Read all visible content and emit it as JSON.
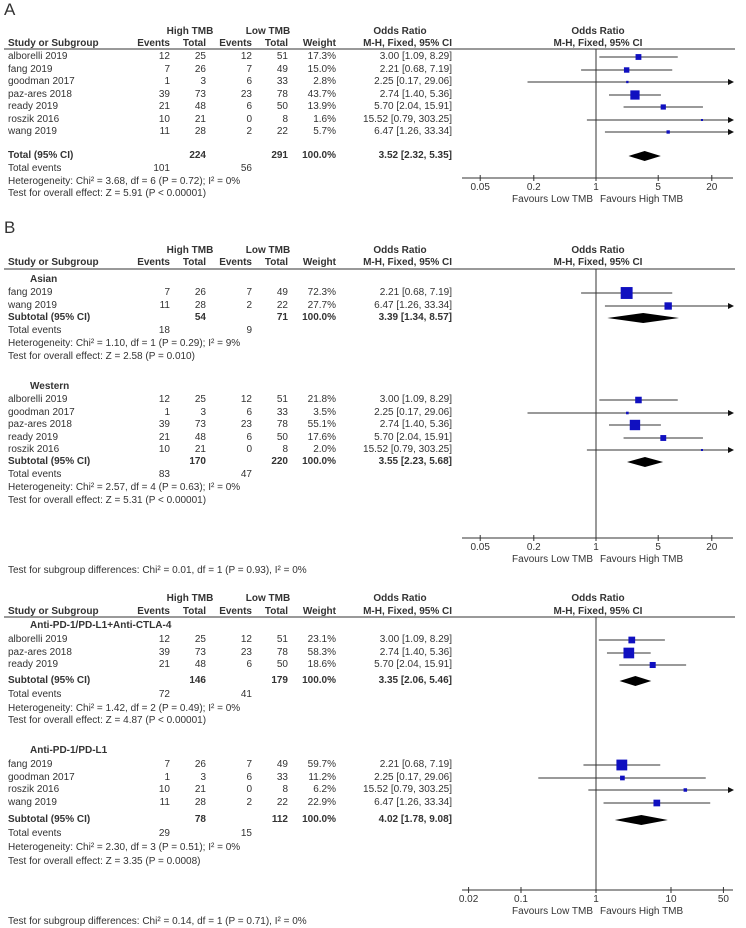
{
  "chart_data": [
    {
      "type": "forest",
      "panel_label": "A",
      "headers": {
        "high": "High TMB",
        "low": "Low TMB",
        "or": "Odds Ratio",
        "study": "Study or Subgroup",
        "events": "Events",
        "total": "Total",
        "weight": "Weight",
        "method": "M-H, Fixed, 95% CI",
        "plot_title": "Odds Ratio",
        "plot_method": "M-H, Fixed, 95% CI"
      },
      "groups": [
        {
          "name": "",
          "studies": [
            {
              "study": "alborelli 2019",
              "he": "12",
              "ht": "25",
              "le": "12",
              "lt": "51",
              "weight": 17.3,
              "w_text": "17.3%",
              "or": 3.0,
              "lo": 1.09,
              "hi": 8.29,
              "or_text": "3.00 [1.09, 8.29]"
            },
            {
              "study": "fang 2019",
              "he": "7",
              "ht": "26",
              "le": "7",
              "lt": "49",
              "weight": 15.0,
              "w_text": "15.0%",
              "or": 2.21,
              "lo": 0.68,
              "hi": 7.19,
              "or_text": "2.21 [0.68, 7.19]"
            },
            {
              "study": "goodman 2017",
              "he": "1",
              "ht": "3",
              "le": "6",
              "lt": "33",
              "weight": 2.8,
              "w_text": "2.8%",
              "or": 2.25,
              "lo": 0.17,
              "hi": 29.06,
              "or_text": "2.25 [0.17, 29.06]"
            },
            {
              "study": "paz-ares 2018",
              "he": "39",
              "ht": "73",
              "le": "23",
              "lt": "78",
              "weight": 43.7,
              "w_text": "43.7%",
              "or": 2.74,
              "lo": 1.4,
              "hi": 5.36,
              "or_text": "2.74 [1.40, 5.36]"
            },
            {
              "study": "ready 2019",
              "he": "21",
              "ht": "48",
              "le": "6",
              "lt": "50",
              "weight": 13.9,
              "w_text": "13.9%",
              "or": 5.7,
              "lo": 2.04,
              "hi": 15.91,
              "or_text": "5.70 [2.04, 15.91]"
            },
            {
              "study": "roszik 2016",
              "he": "10",
              "ht": "21",
              "le": "0",
              "lt": "8",
              "weight": 1.6,
              "w_text": "1.6%",
              "or": 15.52,
              "lo": 0.79,
              "hi": 303.25,
              "or_text": "15.52 [0.79, 303.25]"
            },
            {
              "study": "wang 2019",
              "he": "11",
              "ht": "28",
              "le": "2",
              "lt": "22",
              "weight": 5.7,
              "w_text": "5.7%",
              "or": 6.47,
              "lo": 1.26,
              "hi": 33.34,
              "or_text": "6.47 [1.26, 33.34]"
            }
          ],
          "subtotal": {
            "label": "Total (95% CI)",
            "ht": "224",
            "lt": "291",
            "w_text": "100.0%",
            "or": 3.52,
            "lo": 2.32,
            "hi": 5.35,
            "or_text": "3.52 [2.32, 5.35]"
          },
          "events": {
            "label": "Total events",
            "high": "101",
            "low": "56"
          },
          "heterogeneity": "Heterogeneity: Chi² = 3.68, df = 6 (P = 0.72); I² = 0%",
          "overall": "Test for overall effect: Z = 5.91 (P < 0.00001)"
        }
      ],
      "axis": {
        "scale": "log",
        "range": [
          0.05,
          20
        ],
        "ticks": [
          "0.05",
          "0.2",
          "1",
          "5",
          "20"
        ],
        "favours_low": "Favours Low TMB",
        "favours_high": "Favours High TMB"
      },
      "subgroup_diff": ""
    },
    {
      "type": "forest",
      "panel_label": "B",
      "headers": {
        "high": "High TMB",
        "low": "Low TMB",
        "or": "Odds Ratio",
        "study": "Study or Subgroup",
        "events": "Events",
        "total": "Total",
        "weight": "Weight",
        "method": "M-H, Fixed, 95% CI",
        "plot_title": "Odds Ratio",
        "plot_method": "M-H, Fixed, 95% CI"
      },
      "groups": [
        {
          "name": "Asian",
          "studies": [
            {
              "study": "fang 2019",
              "he": "7",
              "ht": "26",
              "le": "7",
              "lt": "49",
              "weight": 72.3,
              "w_text": "72.3%",
              "or": 2.21,
              "lo": 0.68,
              "hi": 7.19,
              "or_text": "2.21 [0.68, 7.19]"
            },
            {
              "study": "wang 2019",
              "he": "11",
              "ht": "28",
              "le": "2",
              "lt": "22",
              "weight": 27.7,
              "w_text": "27.7%",
              "or": 6.47,
              "lo": 1.26,
              "hi": 33.34,
              "or_text": "6.47 [1.26, 33.34]"
            }
          ],
          "subtotal": {
            "label": "Subtotal (95% CI)",
            "ht": "54",
            "lt": "71",
            "w_text": "100.0%",
            "or": 3.39,
            "lo": 1.34,
            "hi": 8.57,
            "or_text": "3.39 [1.34, 8.57]"
          },
          "events": {
            "label": "Total events",
            "high": "18",
            "low": "9"
          },
          "heterogeneity": "Heterogeneity: Chi² = 1.10, df = 1 (P = 0.29); I² = 9%",
          "overall": "Test for overall effect: Z = 2.58 (P = 0.010)"
        },
        {
          "name": "Western",
          "studies": [
            {
              "study": "alborelli 2019",
              "he": "12",
              "ht": "25",
              "le": "12",
              "lt": "51",
              "weight": 21.8,
              "w_text": "21.8%",
              "or": 3.0,
              "lo": 1.09,
              "hi": 8.29,
              "or_text": "3.00 [1.09, 8.29]"
            },
            {
              "study": "goodman 2017",
              "he": "1",
              "ht": "3",
              "le": "6",
              "lt": "33",
              "weight": 3.5,
              "w_text": "3.5%",
              "or": 2.25,
              "lo": 0.17,
              "hi": 29.06,
              "or_text": "2.25 [0.17, 29.06]"
            },
            {
              "study": "paz-ares 2018",
              "he": "39",
              "ht": "73",
              "le": "23",
              "lt": "78",
              "weight": 55.1,
              "w_text": "55.1%",
              "or": 2.74,
              "lo": 1.4,
              "hi": 5.36,
              "or_text": "2.74 [1.40, 5.36]"
            },
            {
              "study": "ready 2019",
              "he": "21",
              "ht": "48",
              "le": "6",
              "lt": "50",
              "weight": 17.6,
              "w_text": "17.6%",
              "or": 5.7,
              "lo": 2.04,
              "hi": 15.91,
              "or_text": "5.70 [2.04, 15.91]"
            },
            {
              "study": "roszik 2016",
              "he": "10",
              "ht": "21",
              "le": "0",
              "lt": "8",
              "weight": 2.0,
              "w_text": "2.0%",
              "or": 15.52,
              "lo": 0.79,
              "hi": 303.25,
              "or_text": "15.52 [0.79, 303.25]"
            }
          ],
          "subtotal": {
            "label": "Subtotal (95% CI)",
            "ht": "170",
            "lt": "220",
            "w_text": "100.0%",
            "or": 3.55,
            "lo": 2.23,
            "hi": 5.68,
            "or_text": "3.55 [2.23, 5.68]"
          },
          "events": {
            "label": "Total events",
            "high": "83",
            "low": "47"
          },
          "heterogeneity": "Heterogeneity: Chi² = 2.57, df = 4 (P = 0.63); I² = 0%",
          "overall": "Test for overall effect: Z = 5.31 (P < 0.00001)"
        }
      ],
      "axis": {
        "scale": "log",
        "range": [
          0.05,
          20
        ],
        "ticks": [
          "0.05",
          "0.2",
          "1",
          "5",
          "20"
        ],
        "favours_low": "Favours Low TMB",
        "favours_high": "Favours High TMB"
      },
      "subgroup_diff": "Test for subgroup differences: Chi² = 0.01, df = 1 (P = 0.93), I² = 0%"
    },
    {
      "type": "forest",
      "panel_label": "",
      "headers": {
        "high": "High TMB",
        "low": "Low TMB",
        "or": "Odds Ratio",
        "study": "Study or Subgroup",
        "events": "Events",
        "total": "Total",
        "weight": "Weight",
        "method": "M-H, Fixed, 95% CI",
        "plot_title": "Odds Ratio",
        "plot_method": "M-H, Fixed, 95% CI"
      },
      "groups": [
        {
          "name": "Anti-PD-1/PD-L1+Anti-CTLA-4",
          "studies": [
            {
              "study": "alborelli 2019",
              "he": "12",
              "ht": "25",
              "le": "12",
              "lt": "51",
              "weight": 23.1,
              "w_text": "23.1%",
              "or": 3.0,
              "lo": 1.09,
              "hi": 8.29,
              "or_text": "3.00 [1.09, 8.29]"
            },
            {
              "study": "paz-ares 2018",
              "he": "39",
              "ht": "73",
              "le": "23",
              "lt": "78",
              "weight": 58.3,
              "w_text": "58.3%",
              "or": 2.74,
              "lo": 1.4,
              "hi": 5.36,
              "or_text": "2.74 [1.40, 5.36]"
            },
            {
              "study": "ready 2019",
              "he": "21",
              "ht": "48",
              "le": "6",
              "lt": "50",
              "weight": 18.6,
              "w_text": "18.6%",
              "or": 5.7,
              "lo": 2.04,
              "hi": 15.91,
              "or_text": "5.70 [2.04, 15.91]"
            }
          ],
          "subtotal": {
            "label": "Subtotal (95% CI)",
            "ht": "146",
            "lt": "179",
            "w_text": "100.0%",
            "or": 3.35,
            "lo": 2.06,
            "hi": 5.46,
            "or_text": "3.35 [2.06, 5.46]"
          },
          "events": {
            "label": "Total events",
            "high": "72",
            "low": "41"
          },
          "heterogeneity": "Heterogeneity: Chi² = 1.42, df = 2 (P = 0.49); I² = 0%",
          "overall": "Test for overall effect: Z = 4.87 (P < 0.00001)"
        },
        {
          "name": "Anti-PD-1/PD-L1",
          "studies": [
            {
              "study": "fang 2019",
              "he": "7",
              "ht": "26",
              "le": "7",
              "lt": "49",
              "weight": 59.7,
              "w_text": "59.7%",
              "or": 2.21,
              "lo": 0.68,
              "hi": 7.19,
              "or_text": "2.21 [0.68, 7.19]"
            },
            {
              "study": "goodman 2017",
              "he": "1",
              "ht": "3",
              "le": "6",
              "lt": "33",
              "weight": 11.2,
              "w_text": "11.2%",
              "or": 2.25,
              "lo": 0.17,
              "hi": 29.06,
              "or_text": "2.25 [0.17, 29.06]"
            },
            {
              "study": "roszik 2016",
              "he": "10",
              "ht": "21",
              "le": "0",
              "lt": "8",
              "weight": 6.2,
              "w_text": "6.2%",
              "or": 15.52,
              "lo": 0.79,
              "hi": 303.25,
              "or_text": "15.52 [0.79, 303.25]"
            },
            {
              "study": "wang 2019",
              "he": "11",
              "ht": "28",
              "le": "2",
              "lt": "22",
              "weight": 22.9,
              "w_text": "22.9%",
              "or": 6.47,
              "lo": 1.26,
              "hi": 33.34,
              "or_text": "6.47 [1.26, 33.34]"
            }
          ],
          "subtotal": {
            "label": "Subtotal (95% CI)",
            "ht": "78",
            "lt": "112",
            "w_text": "100.0%",
            "or": 4.02,
            "lo": 1.78,
            "hi": 9.08,
            "or_text": "4.02 [1.78, 9.08]"
          },
          "events": {
            "label": "Total events",
            "high": "29",
            "low": "15"
          },
          "heterogeneity": "Heterogeneity: Chi² = 2.30, df = 3 (P = 0.51); I² = 0%",
          "overall": "Test for overall effect: Z = 3.35 (P = 0.0008)"
        }
      ],
      "axis": {
        "scale": "log",
        "range": [
          0.02,
          50
        ],
        "ticks": [
          "0.02",
          "0.1",
          "1",
          "10",
          "50"
        ],
        "favours_low": "Favours Low TMB",
        "favours_high": "Favours High TMB"
      },
      "subgroup_diff": "Test for subgroup differences: Chi² = 0.14, df = 1 (P = 0.71), I² = 0%"
    }
  ],
  "colors": {
    "square": "#1010c0",
    "line": "#333333",
    "diamond": "#000000"
  }
}
